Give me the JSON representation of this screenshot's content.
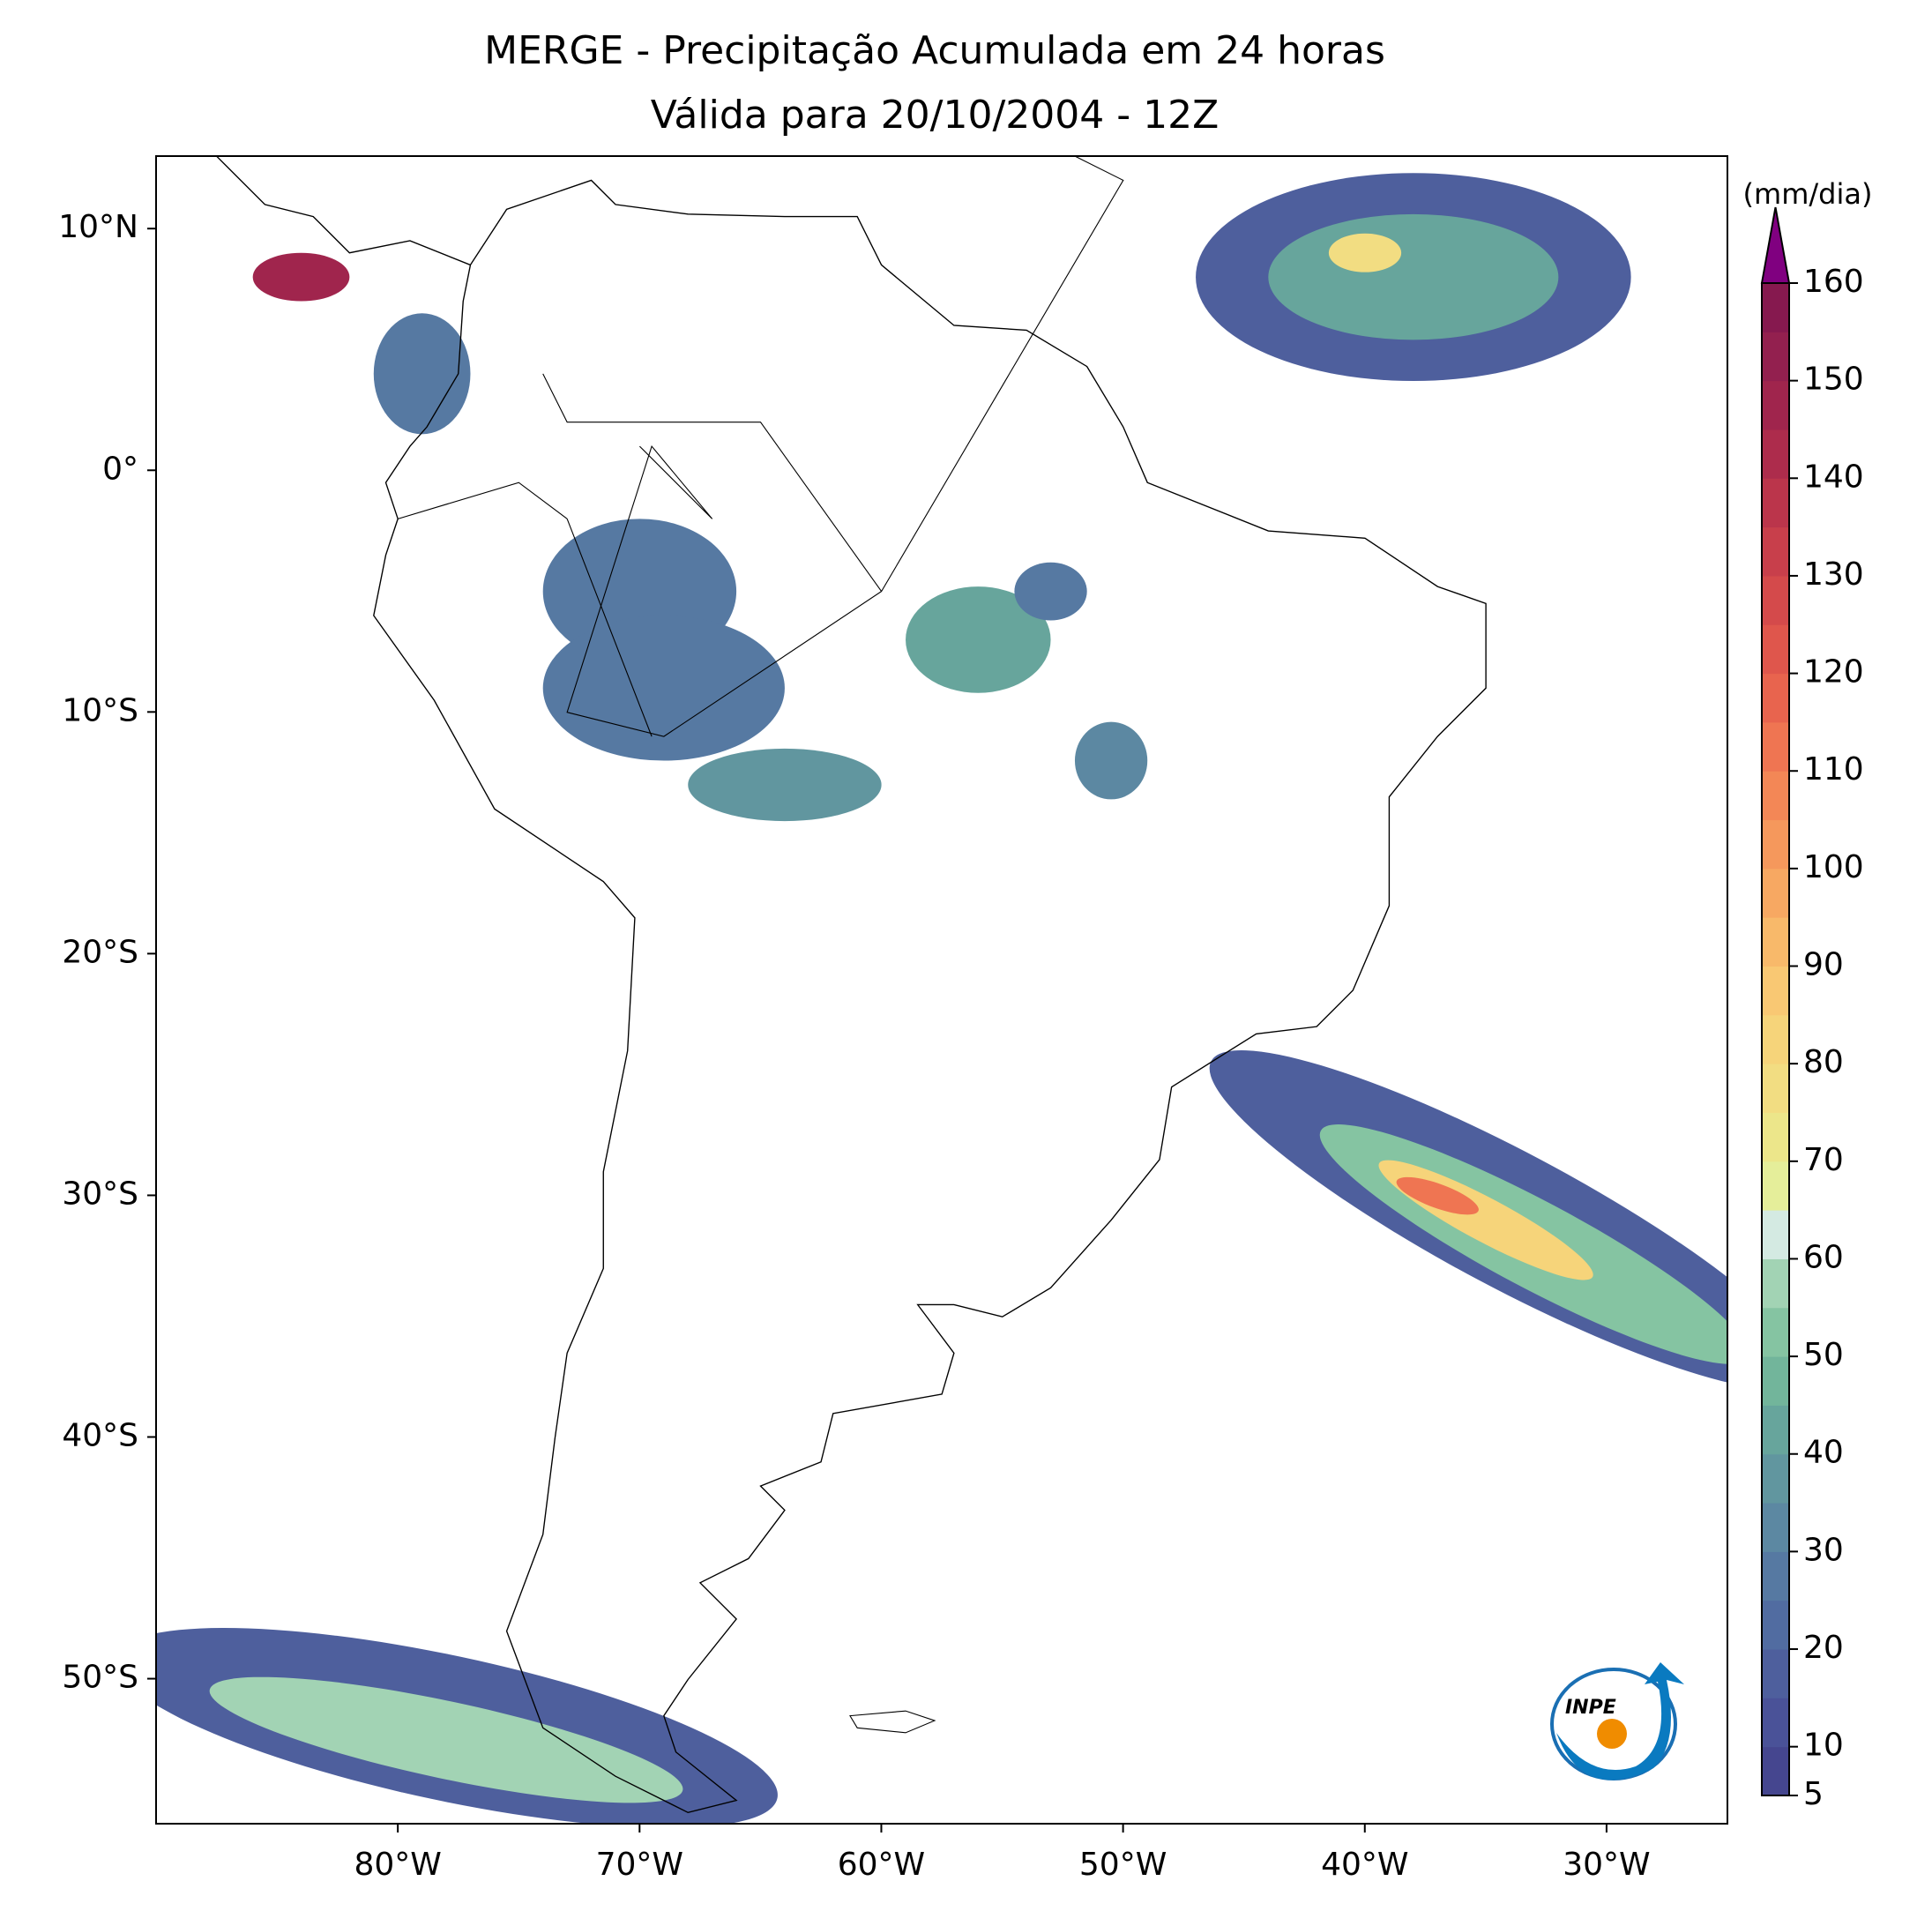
{
  "chart_data": {
    "type": "map",
    "title": "MERGE - Precipitação Acumulada em 24 horas",
    "subtitle": "Válida para 20/10/2004 - 12Z",
    "xlim": [
      -90,
      -25
    ],
    "ylim": [
      -56,
      13
    ],
    "xticks": [
      {
        "value": -80,
        "label": "80°W"
      },
      {
        "value": -70,
        "label": "70°W"
      },
      {
        "value": -60,
        "label": "60°W"
      },
      {
        "value": -50,
        "label": "50°W"
      },
      {
        "value": -40,
        "label": "40°W"
      },
      {
        "value": -30,
        "label": "30°W"
      }
    ],
    "yticks": [
      {
        "value": 10,
        "label": "10°N"
      },
      {
        "value": 0,
        "label": "0°"
      },
      {
        "value": -10,
        "label": "10°S"
      },
      {
        "value": -20,
        "label": "20°S"
      },
      {
        "value": -30,
        "label": "30°S"
      },
      {
        "value": -40,
        "label": "40°S"
      },
      {
        "value": -50,
        "label": "50°S"
      }
    ],
    "colorbar": {
      "label": "(mm/dia)",
      "lim": [
        5,
        160
      ],
      "ticks": [
        5,
        10,
        20,
        30,
        40,
        50,
        60,
        70,
        80,
        90,
        100,
        110,
        120,
        130,
        140,
        150,
        160
      ],
      "levels": [
        5,
        10,
        15,
        20,
        25,
        30,
        35,
        40,
        45,
        50,
        55,
        60,
        65,
        70,
        75,
        80,
        85,
        90,
        95,
        100,
        105,
        110,
        115,
        120,
        125,
        130,
        135,
        140,
        145,
        150,
        155,
        160
      ],
      "colors": [
        "#45468f",
        "#4a5298",
        "#4e5f9d",
        "#516ca1",
        "#5679a2",
        "#5c88a2",
        "#61969f",
        "#67a59c",
        "#72b59b",
        "#85c4a2",
        "#a2d3b4",
        "#d4eae2",
        "#e5ee9a",
        "#ece68a",
        "#f2dd82",
        "#f6d47a",
        "#f9c873",
        "#f8b96a",
        "#f7a862",
        "#f5985c",
        "#f38756",
        "#ef7552",
        "#e8644e",
        "#df564c",
        "#d44a4b",
        "#c83f4b",
        "#bb354b",
        "#ad2c4c",
        "#a0254d",
        "#93204f",
        "#86194f"
      ],
      "extend_color": "#800080"
    },
    "logo": "INPE"
  }
}
